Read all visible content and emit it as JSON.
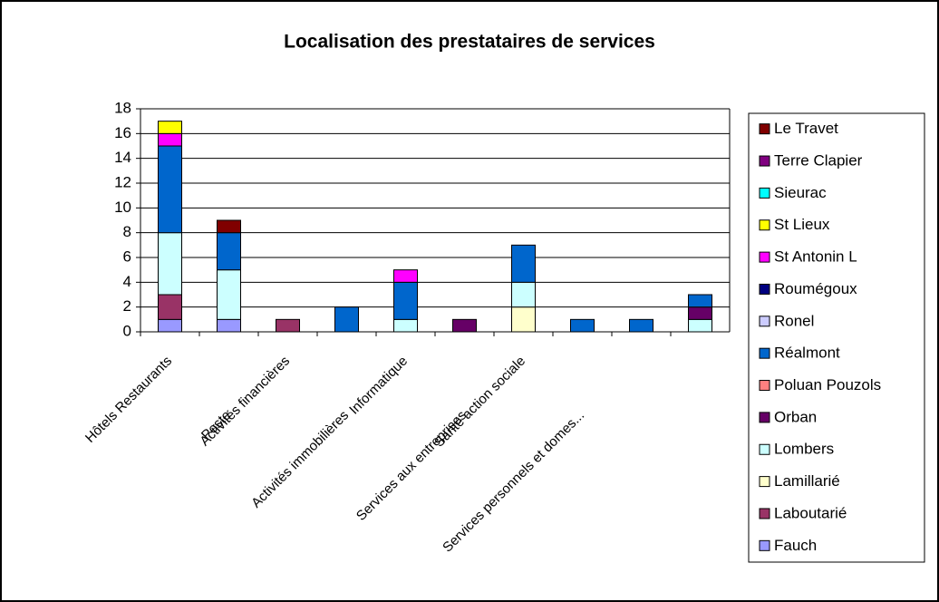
{
  "chart_data": {
    "type": "stacked_bar",
    "title": "Localisation des prestataires de services",
    "categories": [
      "Hôtels Restaurants",
      "Poste",
      "Activités financières",
      "Activités immobilières",
      "Informatique",
      "Services aux entreprises",
      "Santé action sociale",
      "Services personnels et domes...",
      null,
      null
    ],
    "series": [
      {
        "name": "Fauch",
        "color": "#9999ff",
        "values": [
          1,
          1,
          0,
          0,
          0,
          0,
          0,
          0,
          0,
          0
        ]
      },
      {
        "name": "Laboutarié",
        "color": "#993366",
        "values": [
          2,
          0,
          1,
          0,
          0,
          0,
          0,
          0,
          0,
          0
        ]
      },
      {
        "name": "Lamillarié",
        "color": "#ffffcc",
        "values": [
          0,
          0,
          0,
          0,
          0,
          0,
          2,
          0,
          0,
          0
        ]
      },
      {
        "name": "Lombers",
        "color": "#ccffff",
        "values": [
          5,
          4,
          0,
          0,
          1,
          0,
          2,
          0,
          0,
          1
        ]
      },
      {
        "name": "Orban",
        "color": "#660066",
        "values": [
          0,
          0,
          0,
          0,
          0,
          1,
          0,
          0,
          0,
          1
        ]
      },
      {
        "name": "Poluan Pouzols",
        "color": "#ff8080",
        "values": [
          0,
          0,
          0,
          0,
          0,
          0,
          0,
          0,
          0,
          0
        ]
      },
      {
        "name": "Réalmont",
        "color": "#0066cc",
        "values": [
          7,
          3,
          0,
          2,
          3,
          0,
          3,
          1,
          1,
          1
        ]
      },
      {
        "name": "Ronel",
        "color": "#ccccff",
        "values": [
          0,
          0,
          0,
          0,
          0,
          0,
          0,
          0,
          0,
          0
        ]
      },
      {
        "name": "Roumégoux",
        "color": "#000080",
        "values": [
          0,
          0,
          0,
          0,
          0,
          0,
          0,
          0,
          0,
          0
        ]
      },
      {
        "name": "St Antonin L",
        "color": "#ff00ff",
        "values": [
          1,
          0,
          0,
          0,
          1,
          0,
          0,
          0,
          0,
          0
        ]
      },
      {
        "name": "St Lieux",
        "color": "#ffff00",
        "values": [
          1,
          0,
          0,
          0,
          0,
          0,
          0,
          0,
          0,
          0
        ]
      },
      {
        "name": "Sieurac",
        "color": "#00ffff",
        "values": [
          0,
          0,
          0,
          0,
          0,
          0,
          0,
          0,
          0,
          0
        ]
      },
      {
        "name": "Terre Clapier",
        "color": "#800080",
        "values": [
          0,
          0,
          0,
          0,
          0,
          0,
          0,
          0,
          0,
          0
        ]
      },
      {
        "name": "Le Travet",
        "color": "#800000",
        "values": [
          0,
          1,
          0,
          0,
          0,
          0,
          0,
          0,
          0,
          0
        ]
      }
    ],
    "ylim": [
      0,
      18
    ],
    "yticks": [
      0,
      2,
      4,
      6,
      8,
      10,
      12,
      14,
      16,
      18
    ],
    "grid": true,
    "legend": "right"
  }
}
